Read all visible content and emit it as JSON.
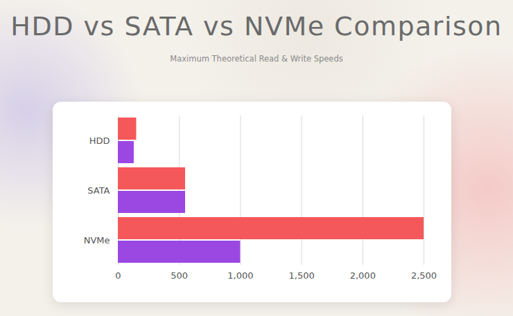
{
  "chart_data": {
    "type": "bar",
    "orientation": "horizontal",
    "title": "HDD vs SATA vs NVMe Comparison",
    "subtitle": "Maximum Theoretical Read & Write Speeds",
    "categories": [
      "HDD",
      "SATA",
      "NVMe"
    ],
    "series": [
      {
        "color": "#f4585a",
        "values": [
          150,
          550,
          2500
        ]
      },
      {
        "color": "#9b48e2",
        "values": [
          130,
          550,
          1000
        ]
      }
    ],
    "xlim": [
      0,
      2500
    ],
    "xticks": [
      0,
      500,
      {
        "value": 1000,
        "label": "1,000"
      },
      {
        "value": 1500,
        "label": "1,500"
      },
      {
        "value": 2000,
        "label": "2,000"
      },
      {
        "value": 2500,
        "label": "2,500"
      }
    ],
    "grid": true
  }
}
